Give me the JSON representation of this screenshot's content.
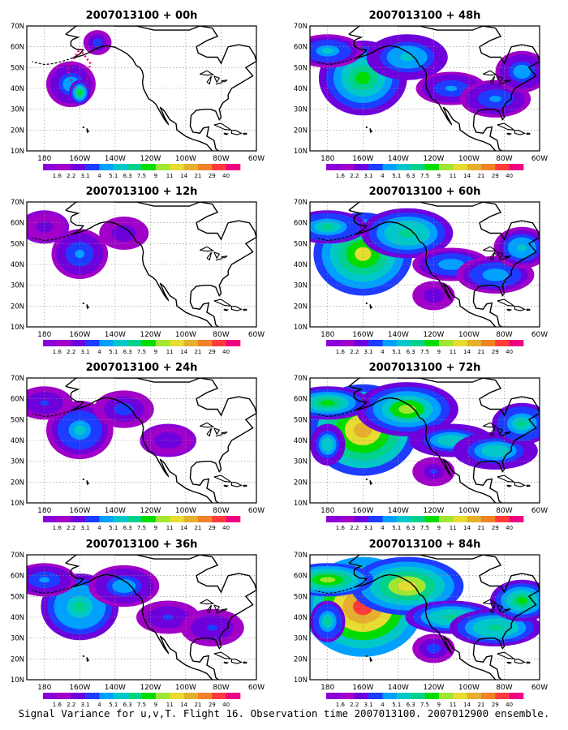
{
  "figure": {
    "caption": "Signal Variance for u,v,T. Flight 16. Observation time 2007013100. 2007012900 ensemble.",
    "lat_ticks": [
      "70N",
      "60N",
      "50N",
      "40N",
      "30N",
      "20N",
      "10N"
    ],
    "lon_ticks": [
      "180",
      "160W",
      "140W",
      "120W",
      "100W",
      "80W",
      "60W"
    ],
    "colorbar": {
      "labels": [
        "1.6",
        "2.2",
        "3.1",
        "4",
        "5.1",
        "6.3",
        "7.5",
        "9",
        "11",
        "14",
        "21",
        "29",
        "40"
      ],
      "colors": [
        "#8c00d8",
        "#a000c8",
        "#6e00dc",
        "#1e3cff",
        "#00a0ff",
        "#00c8c8",
        "#00d28c",
        "#00dc00",
        "#a0e632",
        "#e6dc32",
        "#e6af2d",
        "#f08228",
        "#fa3c3c",
        "#f00082"
      ]
    },
    "panels": [
      {
        "title": "2007013100 + 00h",
        "level": 1
      },
      {
        "title": "2007013100 + 48h",
        "level": 5
      },
      {
        "title": "2007013100 + 12h",
        "level": 2
      },
      {
        "title": "2007013100 + 60h",
        "level": 6
      },
      {
        "title": "2007013100 + 24h",
        "level": 3
      },
      {
        "title": "2007013100 + 72h",
        "level": 7
      },
      {
        "title": "2007013100 + 36h",
        "level": 4
      },
      {
        "title": "2007013100 + 84h",
        "level": 8
      }
    ]
  }
}
